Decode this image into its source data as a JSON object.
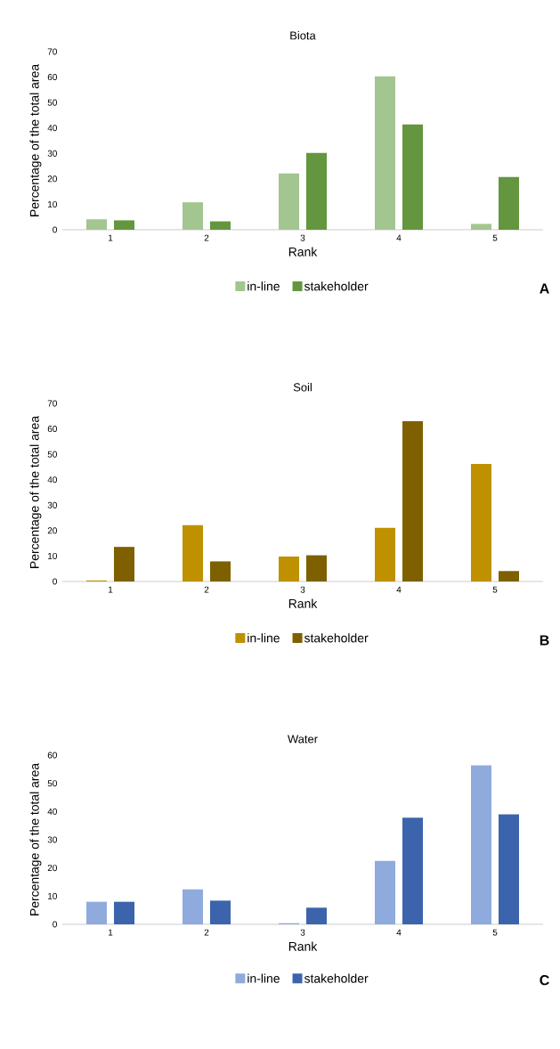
{
  "chart_data": [
    {
      "type": "bar",
      "title": "Biota",
      "xlabel": "Rank",
      "ylabel": "Percentage of the total area",
      "categories": [
        "1",
        "2",
        "3",
        "4",
        "5"
      ],
      "series": [
        {
          "name": "in-line",
          "color": "#a3c590",
          "values": [
            4.1,
            10.8,
            22.1,
            60.3,
            2.3
          ]
        },
        {
          "name": "stakeholder",
          "color": "#63963e",
          "values": [
            3.7,
            3.3,
            30.2,
            41.4,
            20.7
          ]
        }
      ],
      "ylim": [
        0,
        70
      ],
      "yticks": [
        0,
        10,
        20,
        30,
        40,
        50,
        60,
        70
      ],
      "grid": false,
      "legend": "bottom",
      "annotations": [
        "A"
      ]
    },
    {
      "type": "bar",
      "title": "Soil",
      "xlabel": "Rank",
      "ylabel": "Percentage of the total area",
      "categories": [
        "1",
        "2",
        "3",
        "4",
        "5"
      ],
      "series": [
        {
          "name": "in-line",
          "color": "#bf9000",
          "values": [
            0.4,
            22.1,
            9.8,
            21.1,
            46.2
          ]
        },
        {
          "name": "stakeholder",
          "color": "#7f6000",
          "values": [
            13.6,
            7.9,
            10.3,
            63.0,
            4.1
          ]
        }
      ],
      "ylim": [
        0,
        70
      ],
      "yticks": [
        0,
        10,
        20,
        30,
        40,
        50,
        60,
        70
      ],
      "grid": false,
      "legend": "bottom",
      "annotations": [
        "B"
      ]
    },
    {
      "type": "bar",
      "title": "Water",
      "xlabel": "Rank",
      "ylabel": "Percentage of the total area",
      "categories": [
        "1",
        "2",
        "3",
        "4",
        "5"
      ],
      "series": [
        {
          "name": "in-line",
          "color": "#8faadc",
          "values": [
            8.0,
            12.4,
            0.4,
            22.5,
            56.4
          ]
        },
        {
          "name": "stakeholder",
          "color": "#3c64ad",
          "values": [
            8.0,
            8.4,
            5.9,
            37.8,
            39.0
          ]
        }
      ],
      "ylim": [
        0,
        60
      ],
      "yticks": [
        0,
        10,
        20,
        30,
        40,
        50,
        60
      ],
      "grid": false,
      "legend": "bottom",
      "annotations": [
        "C"
      ]
    }
  ]
}
